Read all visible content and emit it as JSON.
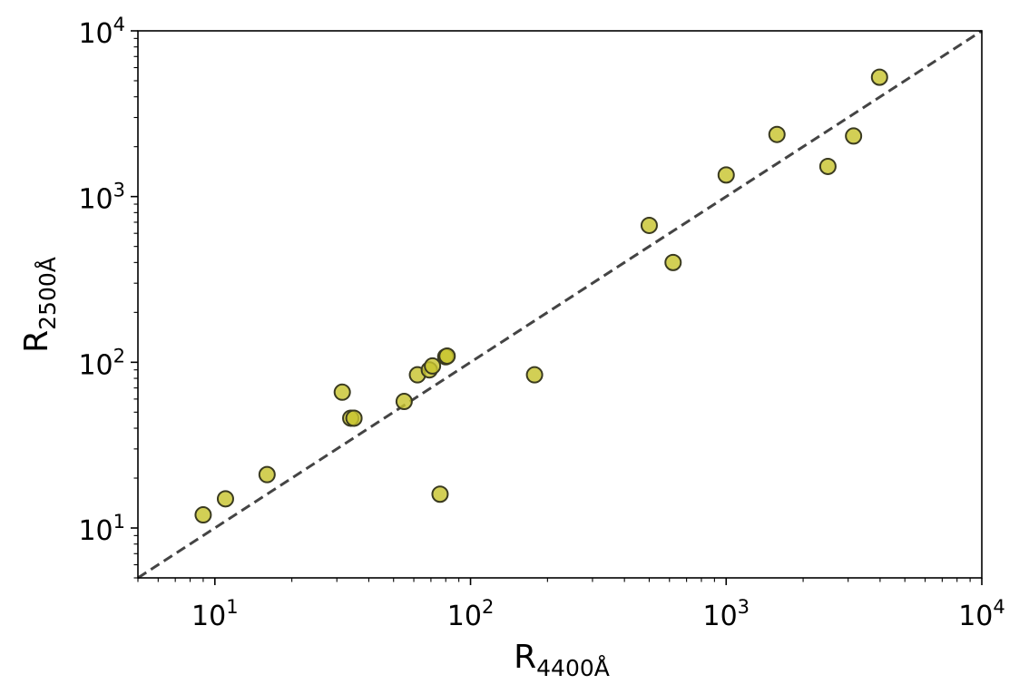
{
  "chart_data": {
    "type": "scatter",
    "title": "",
    "xlabel": "R",
    "xlabel_sub": "4400Å",
    "ylabel": "R",
    "ylabel_sub": "2500Å",
    "xscale": "log",
    "yscale": "log",
    "xlim": [
      5,
      10000
    ],
    "ylim": [
      5,
      10000
    ],
    "x_ticks": [
      {
        "value": 10,
        "base": "10",
        "exp": "1"
      },
      {
        "value": 100,
        "base": "10",
        "exp": "2"
      },
      {
        "value": 1000,
        "base": "10",
        "exp": "3"
      },
      {
        "value": 10000,
        "base": "10",
        "exp": "4"
      }
    ],
    "y_ticks": [
      {
        "value": 10,
        "base": "10",
        "exp": "1"
      },
      {
        "value": 100,
        "base": "10",
        "exp": "2"
      },
      {
        "value": 1000,
        "base": "10",
        "exp": "3"
      },
      {
        "value": 10000,
        "base": "10",
        "exp": "4"
      }
    ],
    "grid": false,
    "reference_line": {
      "style": "dashed",
      "relation": "y = x",
      "color": "#444444"
    },
    "marker_color": "#c8c430",
    "marker_edge_color": "#3a3a20",
    "series": [
      {
        "points": [
          {
            "x": 9,
            "y": 12
          },
          {
            "x": 11,
            "y": 15
          },
          {
            "x": 16,
            "y": 21
          },
          {
            "x": 31.5,
            "y": 66
          },
          {
            "x": 34,
            "y": 46
          },
          {
            "x": 35,
            "y": 46
          },
          {
            "x": 55,
            "y": 58
          },
          {
            "x": 62,
            "y": 84
          },
          {
            "x": 69,
            "y": 90
          },
          {
            "x": 71,
            "y": 95
          },
          {
            "x": 76,
            "y": 16
          },
          {
            "x": 80,
            "y": 108
          },
          {
            "x": 81,
            "y": 109
          },
          {
            "x": 178,
            "y": 84
          },
          {
            "x": 500,
            "y": 670
          },
          {
            "x": 620,
            "y": 400
          },
          {
            "x": 1000,
            "y": 1350
          },
          {
            "x": 1580,
            "y": 2370
          },
          {
            "x": 2500,
            "y": 1520
          },
          {
            "x": 3150,
            "y": 2320
          },
          {
            "x": 3980,
            "y": 5250
          }
        ]
      }
    ]
  }
}
